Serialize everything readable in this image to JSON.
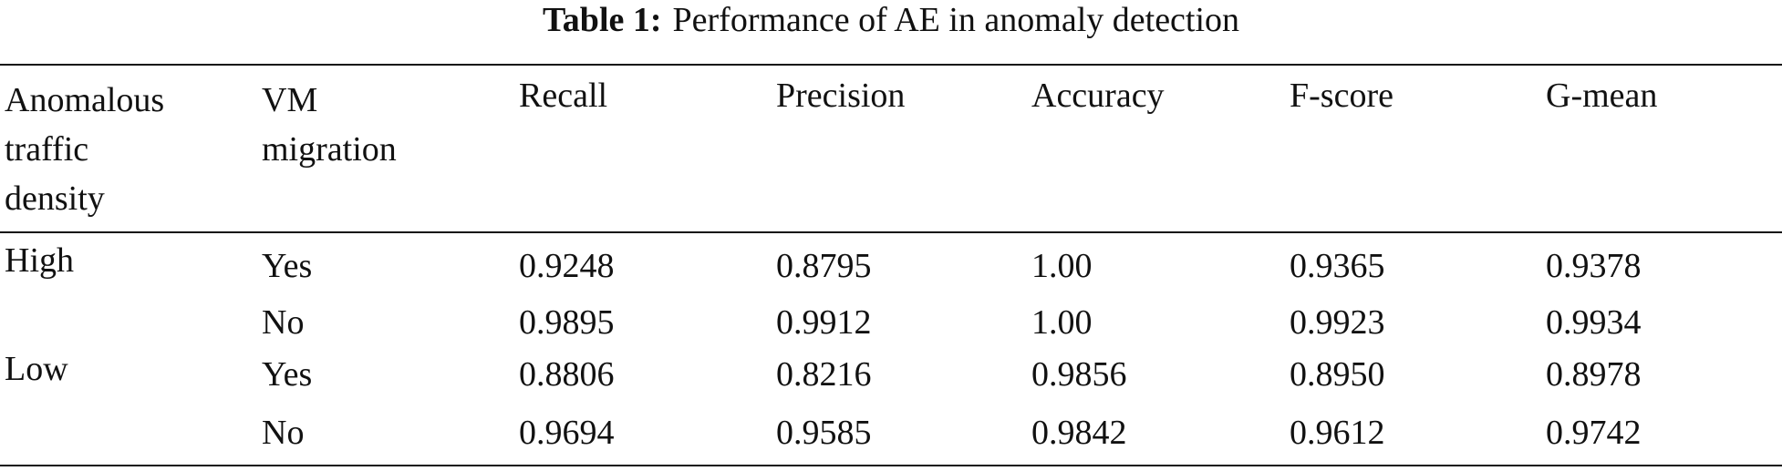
{
  "caption": {
    "label": "Table 1:",
    "text": "Performance of AE in anomaly detection"
  },
  "table": {
    "headers": [
      "Anomalous traffic density",
      "VM migration",
      "Recall",
      "Precision",
      "Accuracy",
      "F-score",
      "G-mean"
    ],
    "groups": [
      {
        "label": "High",
        "rows": [
          [
            "Yes",
            "0.9248",
            "0.8795",
            "1.00",
            "0.9365",
            "0.9378"
          ],
          [
            "No",
            "0.9895",
            "0.9912",
            "1.00",
            "0.9923",
            "0.9934"
          ]
        ]
      },
      {
        "label": "Low",
        "rows": [
          [
            "Yes",
            "0.8806",
            "0.8216",
            "0.9856",
            "0.8950",
            "0.8978"
          ],
          [
            "No",
            "0.9694",
            "0.9585",
            "0.9842",
            "0.9612",
            "0.9742"
          ]
        ]
      }
    ]
  }
}
